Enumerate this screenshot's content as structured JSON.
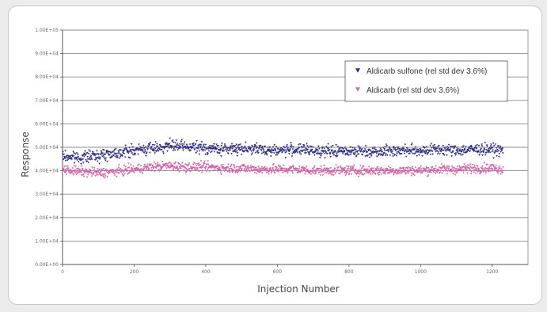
{
  "chart_data": {
    "type": "scatter",
    "xlabel": "Injection Number",
    "ylabel": "Response",
    "xlim": [
      0,
      1300
    ],
    "ylim": [
      0,
      100000
    ],
    "x_ticks": [
      0,
      200,
      400,
      600,
      800,
      1000,
      1200
    ],
    "x_tick_labels": [
      "0",
      "200",
      "400",
      "600",
      "800",
      "1000",
      "1200"
    ],
    "y_ticks": [
      0,
      10000,
      20000,
      30000,
      40000,
      50000,
      60000,
      70000,
      80000,
      90000,
      100000
    ],
    "y_tick_labels": [
      "0.00E+00",
      "1.00E+04",
      "2.00E+04",
      "3.00E+04",
      "4.00E+04",
      "5.00E+04",
      "6.00E+04",
      "7.00E+04",
      "8.00E+04",
      "9.00E+04",
      "1.00E+05"
    ],
    "grid": "horizontal",
    "legend_position": "top-right",
    "series": [
      {
        "name": "Aldicarb sulfone (rel std dev 3.6%)",
        "color": "#2e2e80",
        "marker": "filled-triangle",
        "x": [
          0,
          50,
          100,
          150,
          200,
          250,
          300,
          350,
          400,
          450,
          500,
          550,
          600,
          650,
          700,
          750,
          800,
          850,
          900,
          950,
          1000,
          1050,
          1100,
          1150,
          1200,
          1230
        ],
        "y": [
          46000,
          45500,
          46500,
          47500,
          48500,
          49500,
          50500,
          50000,
          49500,
          49000,
          49500,
          49000,
          48500,
          49000,
          48500,
          48000,
          48500,
          48000,
          48500,
          48500,
          48500,
          49000,
          48500,
          49000,
          49000,
          48500
        ],
        "spread": 1700
      },
      {
        "name": "Aldicarb (rel std dev 3.6%)",
        "color": "#d163a8",
        "marker": "filled-triangle",
        "x": [
          0,
          50,
          100,
          150,
          200,
          250,
          300,
          350,
          400,
          450,
          500,
          550,
          600,
          650,
          700,
          750,
          800,
          850,
          900,
          950,
          1000,
          1050,
          1100,
          1150,
          1200,
          1230
        ],
        "y": [
          40500,
          39500,
          39000,
          39500,
          40500,
          41500,
          42000,
          41500,
          41500,
          41000,
          41000,
          40500,
          40500,
          40500,
          40000,
          40000,
          40000,
          40000,
          40000,
          40000,
          40000,
          40500,
          40500,
          41000,
          41000,
          40500
        ],
        "spread": 1400
      }
    ]
  }
}
